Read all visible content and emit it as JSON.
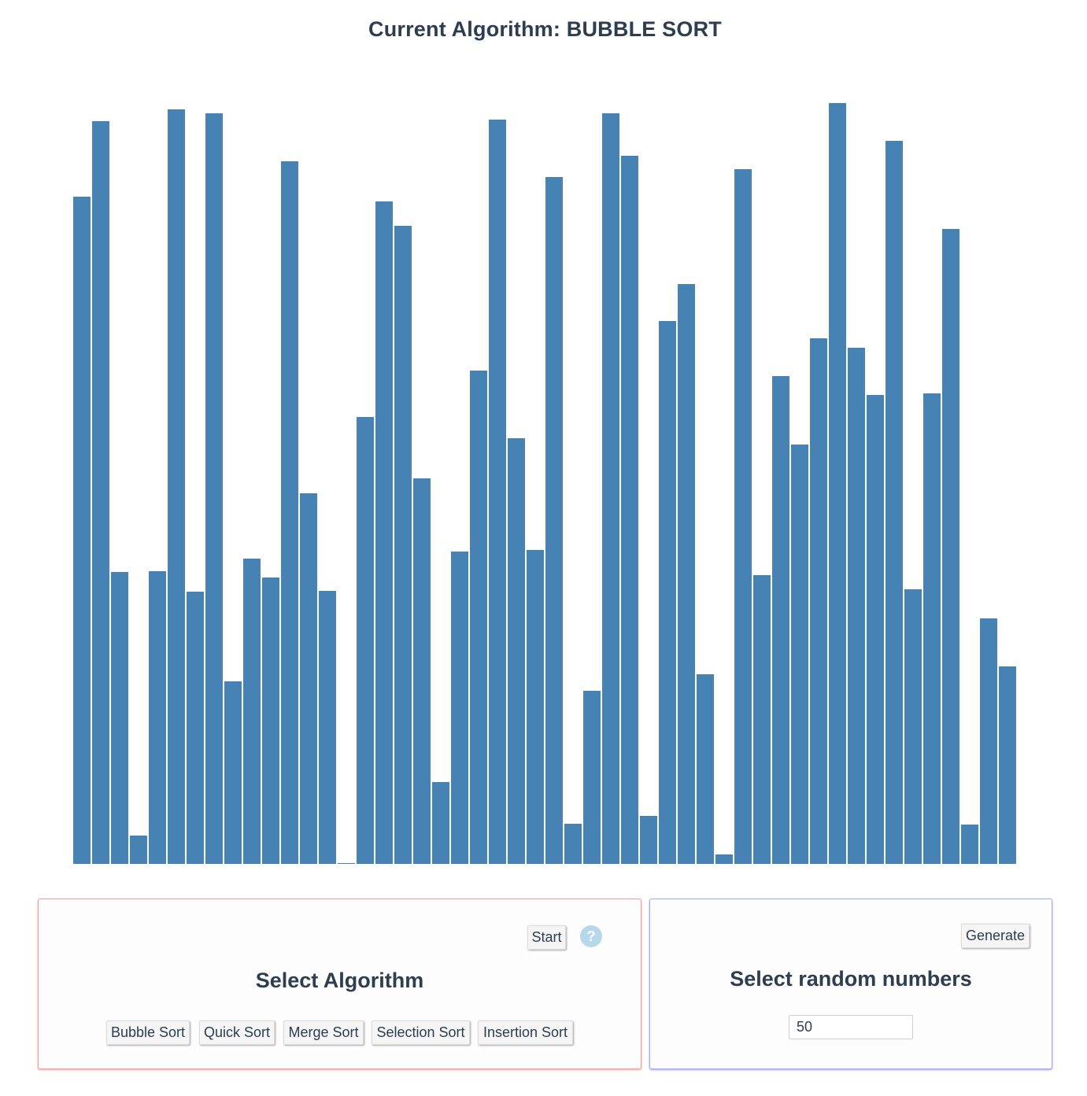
{
  "header": {
    "title": "Current Algorithm: BUBBLE SORT"
  },
  "colors": {
    "bar": "#4682b4",
    "text": "#2c3e50",
    "algorithm_panel_border": "#f1a1a1",
    "numbers_panel_border": "#a9a9f0",
    "help_icon": "#b6d8ea"
  },
  "chart_data": {
    "type": "bar",
    "values": [
      848,
      944,
      371,
      36,
      372,
      959,
      346,
      954,
      232,
      388,
      364,
      893,
      471,
      347,
      1,
      568,
      842,
      811,
      490,
      104,
      397,
      627,
      946,
      541,
      399,
      873,
      51,
      220,
      954,
      900,
      61,
      690,
      737,
      241,
      12,
      883,
      367,
      620,
      533,
      668,
      967,
      656,
      596,
      919,
      349,
      598,
      807,
      50,
      312,
      251
    ],
    "ylim": [
      0,
      1000
    ]
  },
  "algorithm_panel": {
    "start_label": "Start",
    "help_icon": "question-circle-icon",
    "help_glyph": "?",
    "heading": "Select Algorithm",
    "algorithms": {
      "bubble": "Bubble Sort",
      "quick": "Quick Sort",
      "merge": "Merge Sort",
      "selection": "Selection Sort",
      "insertion": "Insertion Sort"
    }
  },
  "numbers_panel": {
    "generate_label": "Generate",
    "heading": "Select random numbers",
    "count_value": "50"
  }
}
